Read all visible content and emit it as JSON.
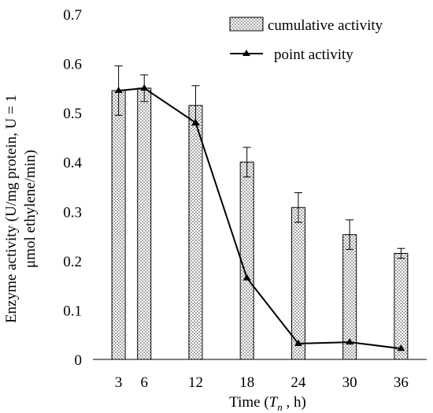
{
  "chart_data": {
    "type": "bar",
    "x_is_numeric": true,
    "categories": [
      3,
      6,
      12,
      18,
      24,
      30,
      36
    ],
    "xlabel_parts": {
      "prefix": "Time (",
      "symbol": "T",
      "subscript": "n",
      "suffix": " , h)"
    },
    "ylabel_lines": [
      "Enzyme activity (U/mg protein, U = 1",
      "μmol ethylene/min)"
    ],
    "ylim": [
      0,
      0.7
    ],
    "yticks": [
      "0",
      "0.1",
      "0.2",
      "0.3",
      "0.4",
      "0.5",
      "0.6",
      "0.7"
    ],
    "ytick_values": [
      0,
      0.1,
      0.2,
      0.3,
      0.4,
      0.5,
      0.6,
      0.7
    ],
    "xtick_labels": [
      "3",
      "6",
      "12",
      "18",
      "24",
      "30",
      "36"
    ],
    "grid": false,
    "legend_position": "top-right",
    "series": [
      {
        "name": "cumulative activity",
        "kind": "bar",
        "pattern": "dotted",
        "values": [
          0.545,
          0.55,
          0.515,
          0.4,
          0.308,
          0.253,
          0.215
        ],
        "errors": [
          0.05,
          0.027,
          0.04,
          0.03,
          0.03,
          0.03,
          0.01
        ]
      },
      {
        "name": "point activity",
        "kind": "line",
        "marker": "triangle",
        "color": "#000000",
        "values": [
          0.545,
          0.55,
          0.48,
          0.165,
          0.032,
          0.035,
          0.022
        ]
      }
    ]
  }
}
